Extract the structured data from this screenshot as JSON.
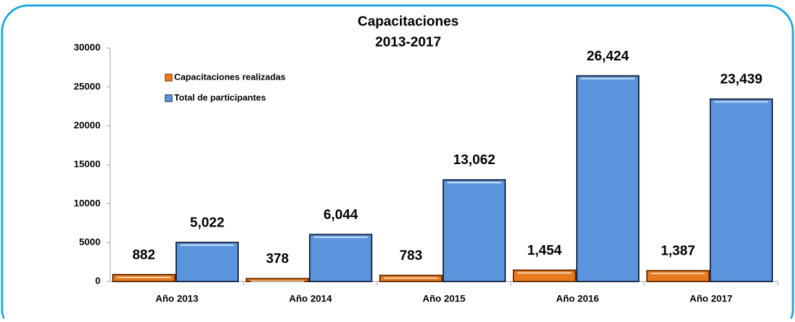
{
  "chart_data": {
    "type": "bar",
    "title": "Capacitaciones",
    "subtitle": "2013-2017",
    "categories": [
      "Año 2013",
      "Año 2014",
      "Año 2015",
      "Año 2016",
      "Año 2017"
    ],
    "series": [
      {
        "name": "Capacitaciones realizadas",
        "color": "#e8791c",
        "values": [
          882,
          378,
          783,
          1454,
          1387
        ],
        "value_labels": [
          "882",
          "378",
          "783",
          "1,454",
          "1,387"
        ]
      },
      {
        "name": "Total de participantes",
        "color": "#5b95dd",
        "values": [
          5022,
          6044,
          13062,
          26424,
          23439
        ],
        "value_labels": [
          "5,022",
          "6,044",
          "13,062",
          "26,424",
          "23,439"
        ]
      }
    ],
    "ylim": [
      0,
      30000
    ],
    "yticks": [
      0,
      5000,
      10000,
      15000,
      20000,
      25000,
      30000
    ],
    "grid": false,
    "legend": "upper left"
  }
}
